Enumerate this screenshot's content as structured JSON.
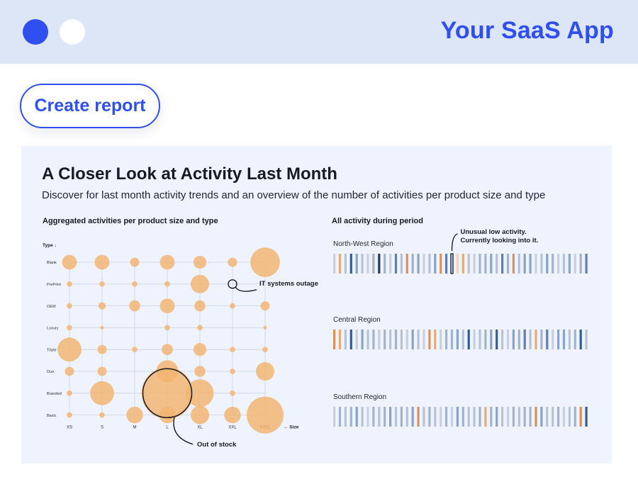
{
  "app": {
    "title": "Your SaaS App"
  },
  "toolbar": {
    "create_report_label": "Create report"
  },
  "report": {
    "title": "A Closer Look at Activity Last Month",
    "subtitle": "Discover for last month activity trends and an overview of the number of activities per product size and type"
  },
  "colors": {
    "accent": "#2f4ff0",
    "bubble": "#f3b36f",
    "header_bg": "#dde6f7",
    "card_bg": "#eef3fd"
  },
  "bubble_chart": {
    "title": "Aggregated activities per product size and type",
    "y_axis_label": "Type ↓",
    "x_axis_label": "← Size",
    "rows": [
      "Blank",
      "PrePrint",
      "OEM",
      "Luxury",
      "Triple",
      "Duo",
      "Branded",
      "Basic"
    ],
    "cols": [
      "XS",
      "S",
      "M",
      "L",
      "XL",
      "XXL",
      "XXXL"
    ],
    "annotations": {
      "outage": "IT systems outage",
      "stock": "Out of stock"
    }
  },
  "chart_data": [
    {
      "type": "scatter",
      "title": "Aggregated activities per product size and type",
      "x_categories": [
        "XS",
        "S",
        "M",
        "L",
        "XL",
        "XXL",
        "XXXL"
      ],
      "y_categories": [
        "Blank",
        "PrePrint",
        "OEM",
        "Luxury",
        "Triple",
        "Duo",
        "Branded",
        "Basic"
      ],
      "bubble_size_relative": [
        [
          4,
          4,
          2.5,
          4,
          3.5,
          2.5,
          8
        ],
        [
          1.5,
          1.5,
          1.5,
          1.5,
          5,
          0,
          0
        ],
        [
          1.5,
          2,
          3,
          4,
          3,
          1.5,
          2.5
        ],
        [
          1.5,
          1,
          0,
          1.5,
          1.5,
          0,
          1
        ],
        [
          6.5,
          2.5,
          1.5,
          3,
          3.5,
          1.5,
          1.5
        ],
        [
          2.5,
          2.5,
          0,
          6,
          3,
          1.5,
          5
        ],
        [
          1.5,
          6.5,
          0,
          14,
          7.5,
          1.5,
          0
        ],
        [
          1.5,
          1.5,
          4.5,
          4.5,
          5,
          4.5,
          10
        ]
      ],
      "annotations": [
        "IT systems outage",
        "Out of stock"
      ]
    },
    {
      "type": "heatmap",
      "title": "All activity during period",
      "scale": "0 = light orange (low) ... 9 = dark navy (high)",
      "series": [
        {
          "name": "North-West Region",
          "annotation": "Unusual low activity. Currently looking into it.",
          "values": [
            3,
            1,
            4,
            8,
            6,
            4,
            3,
            5,
            9,
            5,
            3,
            7,
            4,
            2,
            5,
            6,
            3,
            4,
            6,
            2,
            7,
            4,
            0,
            1,
            4,
            3,
            5,
            5,
            6,
            4,
            7,
            5,
            2,
            4,
            6,
            6,
            3,
            4,
            6,
            5,
            3,
            4,
            6,
            3,
            5,
            7
          ]
        },
        {
          "name": "Central Region",
          "values": [
            2,
            1,
            4,
            8,
            3,
            6,
            4,
            5,
            3,
            5,
            4,
            5,
            4,
            3,
            6,
            4,
            3,
            2,
            1,
            3,
            5,
            5,
            6,
            4,
            8,
            3,
            4,
            5,
            6,
            8,
            4,
            3,
            6,
            5,
            7,
            4,
            1,
            5,
            7,
            3,
            6,
            6,
            4,
            5,
            8,
            4
          ]
        },
        {
          "name": "Southern Region",
          "values": [
            3,
            5,
            4,
            5,
            6,
            4,
            3,
            5,
            4,
            5,
            6,
            4,
            5,
            4,
            6,
            2,
            4,
            5,
            4,
            3,
            5,
            3,
            6,
            5,
            4,
            4,
            5,
            1,
            5,
            6,
            4,
            3,
            5,
            4,
            5,
            5,
            2,
            6,
            4,
            4,
            5,
            3,
            4,
            5,
            2,
            8
          ]
        }
      ]
    }
  ]
}
